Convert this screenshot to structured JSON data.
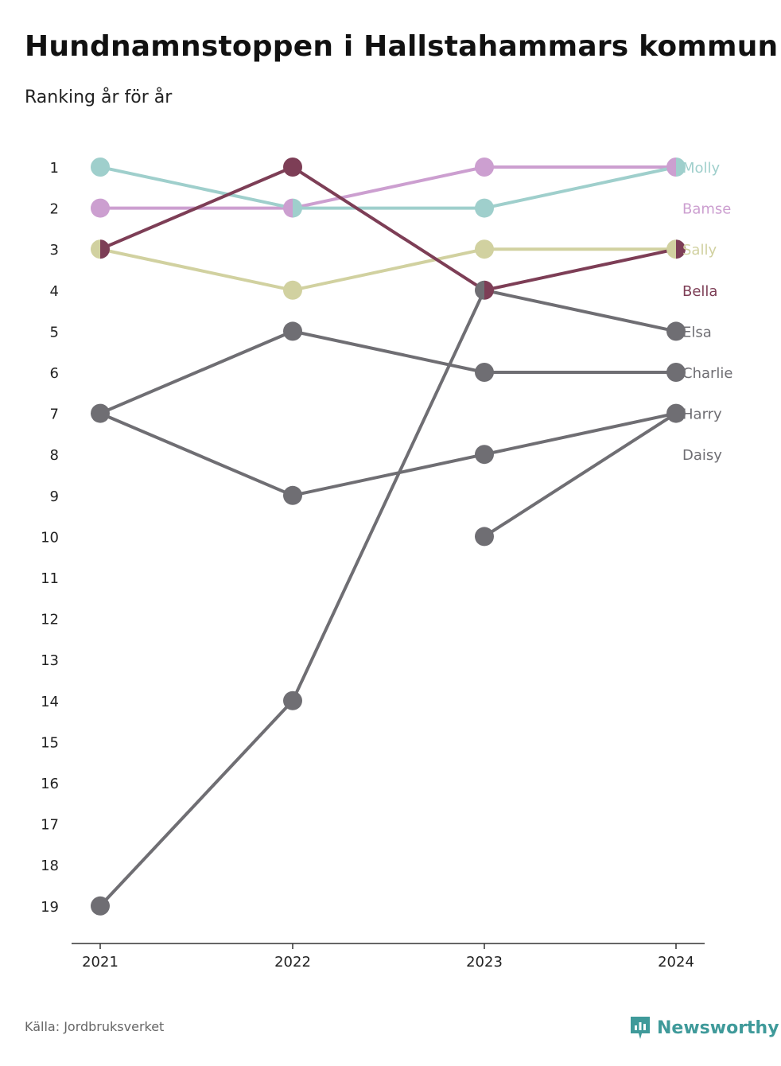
{
  "header": {
    "title": "Hundnamnstoppen i Hallstahammars kommun",
    "subtitle": "Ranking år för år"
  },
  "footer": {
    "source": "Källa: Jordbruksverket",
    "brand": "Newsworthy"
  },
  "colors": {
    "Molly": "#9fcfcc",
    "Bamse": "#cc9fd0",
    "Sally": "#d1d1a0",
    "Bella": "#7d3e56",
    "other": "#6f6e73",
    "brand": "#3f9a9a",
    "axis": "#333333"
  },
  "icons": {
    "brand_logo": "newsworthy-logo-icon"
  },
  "chart_data": {
    "type": "line",
    "title": "Hundnamnstoppen i Hallstahammars kommun",
    "subtitle": "Ranking år för år",
    "x": [
      "2021",
      "2022",
      "2023",
      "2024"
    ],
    "y_ticks": [
      1,
      2,
      3,
      4,
      5,
      6,
      7,
      8,
      9,
      10,
      11,
      12,
      13,
      14,
      15,
      16,
      17,
      18,
      19
    ],
    "ylim": [
      1,
      19
    ],
    "y_reversed": true,
    "series": [
      {
        "name": "Molly",
        "values": [
          1,
          2,
          2,
          1
        ]
      },
      {
        "name": "Bamse",
        "values": [
          2,
          2,
          1,
          1
        ]
      },
      {
        "name": "Sally",
        "values": [
          3,
          4,
          3,
          3
        ]
      },
      {
        "name": "Bella",
        "values": [
          3,
          1,
          4,
          3
        ]
      },
      {
        "name": "Elsa",
        "values": [
          19,
          14,
          4,
          5
        ]
      },
      {
        "name": "Charlie",
        "values": [
          7,
          5,
          6,
          6
        ]
      },
      {
        "name": "Harry",
        "values": [
          7,
          9,
          8,
          7
        ]
      },
      {
        "name": "Daisy",
        "values": [
          null,
          null,
          10,
          7
        ]
      }
    ],
    "labels": [
      "Molly",
      "Bamse",
      "Sally",
      "Bella",
      "Elsa",
      "Charlie",
      "Harry",
      "Daisy"
    ],
    "grid": false,
    "legend": "right"
  }
}
